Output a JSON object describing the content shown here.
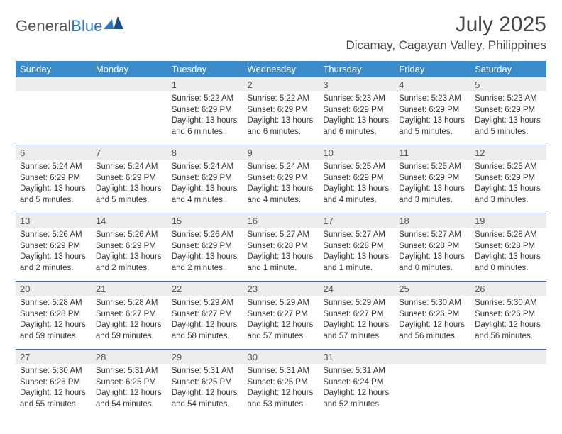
{
  "logo": {
    "text1": "General",
    "text2": "Blue"
  },
  "title": "July 2025",
  "location": "Dicamay, Cagayan Valley, Philippines",
  "colors": {
    "header_bg": "#3a8bc9",
    "header_text": "#ffffff",
    "daynum_bg": "#ececec",
    "row_border": "#3a6fa0",
    "logo_blue": "#2e77b8",
    "logo_gray": "#555555"
  },
  "weekdays": [
    "Sunday",
    "Monday",
    "Tuesday",
    "Wednesday",
    "Thursday",
    "Friday",
    "Saturday"
  ],
  "weeks": [
    [
      null,
      null,
      {
        "n": "1",
        "sr": "Sunrise: 5:22 AM",
        "ss": "Sunset: 6:29 PM",
        "dl": "Daylight: 13 hours and 6 minutes."
      },
      {
        "n": "2",
        "sr": "Sunrise: 5:22 AM",
        "ss": "Sunset: 6:29 PM",
        "dl": "Daylight: 13 hours and 6 minutes."
      },
      {
        "n": "3",
        "sr": "Sunrise: 5:23 AM",
        "ss": "Sunset: 6:29 PM",
        "dl": "Daylight: 13 hours and 6 minutes."
      },
      {
        "n": "4",
        "sr": "Sunrise: 5:23 AM",
        "ss": "Sunset: 6:29 PM",
        "dl": "Daylight: 13 hours and 5 minutes."
      },
      {
        "n": "5",
        "sr": "Sunrise: 5:23 AM",
        "ss": "Sunset: 6:29 PM",
        "dl": "Daylight: 13 hours and 5 minutes."
      }
    ],
    [
      {
        "n": "6",
        "sr": "Sunrise: 5:24 AM",
        "ss": "Sunset: 6:29 PM",
        "dl": "Daylight: 13 hours and 5 minutes."
      },
      {
        "n": "7",
        "sr": "Sunrise: 5:24 AM",
        "ss": "Sunset: 6:29 PM",
        "dl": "Daylight: 13 hours and 5 minutes."
      },
      {
        "n": "8",
        "sr": "Sunrise: 5:24 AM",
        "ss": "Sunset: 6:29 PM",
        "dl": "Daylight: 13 hours and 4 minutes."
      },
      {
        "n": "9",
        "sr": "Sunrise: 5:24 AM",
        "ss": "Sunset: 6:29 PM",
        "dl": "Daylight: 13 hours and 4 minutes."
      },
      {
        "n": "10",
        "sr": "Sunrise: 5:25 AM",
        "ss": "Sunset: 6:29 PM",
        "dl": "Daylight: 13 hours and 4 minutes."
      },
      {
        "n": "11",
        "sr": "Sunrise: 5:25 AM",
        "ss": "Sunset: 6:29 PM",
        "dl": "Daylight: 13 hours and 3 minutes."
      },
      {
        "n": "12",
        "sr": "Sunrise: 5:25 AM",
        "ss": "Sunset: 6:29 PM",
        "dl": "Daylight: 13 hours and 3 minutes."
      }
    ],
    [
      {
        "n": "13",
        "sr": "Sunrise: 5:26 AM",
        "ss": "Sunset: 6:29 PM",
        "dl": "Daylight: 13 hours and 2 minutes."
      },
      {
        "n": "14",
        "sr": "Sunrise: 5:26 AM",
        "ss": "Sunset: 6:29 PM",
        "dl": "Daylight: 13 hours and 2 minutes."
      },
      {
        "n": "15",
        "sr": "Sunrise: 5:26 AM",
        "ss": "Sunset: 6:29 PM",
        "dl": "Daylight: 13 hours and 2 minutes."
      },
      {
        "n": "16",
        "sr": "Sunrise: 5:27 AM",
        "ss": "Sunset: 6:28 PM",
        "dl": "Daylight: 13 hours and 1 minute."
      },
      {
        "n": "17",
        "sr": "Sunrise: 5:27 AM",
        "ss": "Sunset: 6:28 PM",
        "dl": "Daylight: 13 hours and 1 minute."
      },
      {
        "n": "18",
        "sr": "Sunrise: 5:27 AM",
        "ss": "Sunset: 6:28 PM",
        "dl": "Daylight: 13 hours and 0 minutes."
      },
      {
        "n": "19",
        "sr": "Sunrise: 5:28 AM",
        "ss": "Sunset: 6:28 PM",
        "dl": "Daylight: 13 hours and 0 minutes."
      }
    ],
    [
      {
        "n": "20",
        "sr": "Sunrise: 5:28 AM",
        "ss": "Sunset: 6:28 PM",
        "dl": "Daylight: 12 hours and 59 minutes."
      },
      {
        "n": "21",
        "sr": "Sunrise: 5:28 AM",
        "ss": "Sunset: 6:27 PM",
        "dl": "Daylight: 12 hours and 59 minutes."
      },
      {
        "n": "22",
        "sr": "Sunrise: 5:29 AM",
        "ss": "Sunset: 6:27 PM",
        "dl": "Daylight: 12 hours and 58 minutes."
      },
      {
        "n": "23",
        "sr": "Sunrise: 5:29 AM",
        "ss": "Sunset: 6:27 PM",
        "dl": "Daylight: 12 hours and 57 minutes."
      },
      {
        "n": "24",
        "sr": "Sunrise: 5:29 AM",
        "ss": "Sunset: 6:27 PM",
        "dl": "Daylight: 12 hours and 57 minutes."
      },
      {
        "n": "25",
        "sr": "Sunrise: 5:30 AM",
        "ss": "Sunset: 6:26 PM",
        "dl": "Daylight: 12 hours and 56 minutes."
      },
      {
        "n": "26",
        "sr": "Sunrise: 5:30 AM",
        "ss": "Sunset: 6:26 PM",
        "dl": "Daylight: 12 hours and 56 minutes."
      }
    ],
    [
      {
        "n": "27",
        "sr": "Sunrise: 5:30 AM",
        "ss": "Sunset: 6:26 PM",
        "dl": "Daylight: 12 hours and 55 minutes."
      },
      {
        "n": "28",
        "sr": "Sunrise: 5:31 AM",
        "ss": "Sunset: 6:25 PM",
        "dl": "Daylight: 12 hours and 54 minutes."
      },
      {
        "n": "29",
        "sr": "Sunrise: 5:31 AM",
        "ss": "Sunset: 6:25 PM",
        "dl": "Daylight: 12 hours and 54 minutes."
      },
      {
        "n": "30",
        "sr": "Sunrise: 5:31 AM",
        "ss": "Sunset: 6:25 PM",
        "dl": "Daylight: 12 hours and 53 minutes."
      },
      {
        "n": "31",
        "sr": "Sunrise: 5:31 AM",
        "ss": "Sunset: 6:24 PM",
        "dl": "Daylight: 12 hours and 52 minutes."
      },
      null,
      null
    ]
  ]
}
